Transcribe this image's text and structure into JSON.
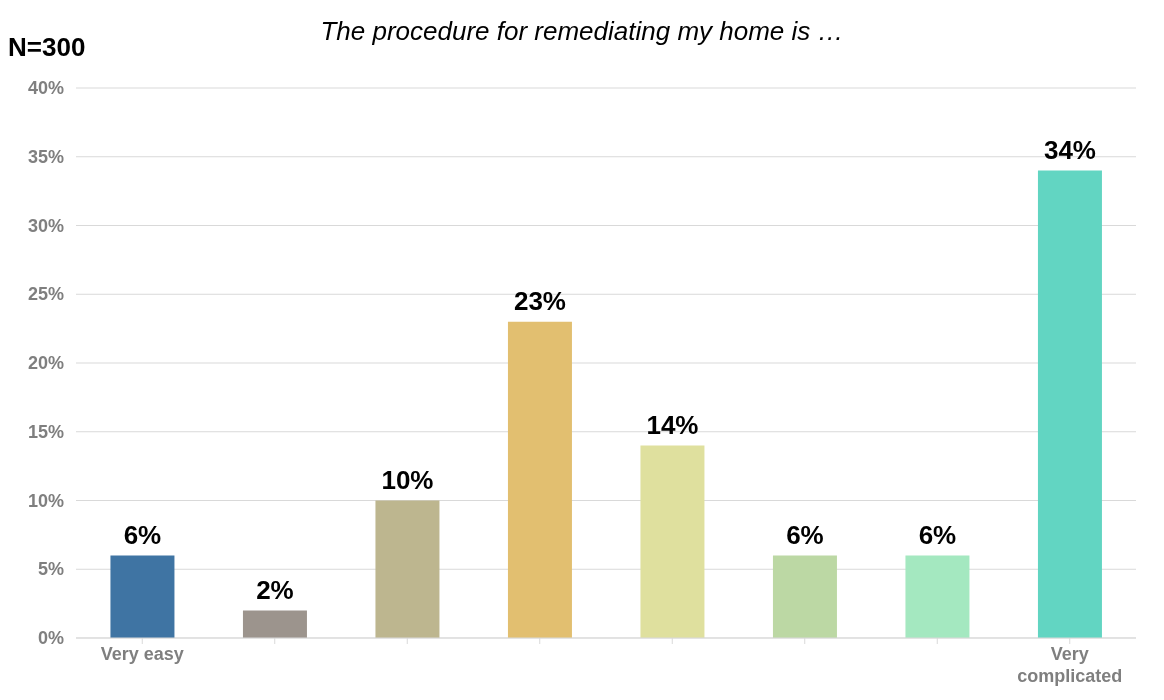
{
  "chart_data": {
    "type": "bar",
    "title": "The procedure for remediating my home is …",
    "annotations": [
      "N=300"
    ],
    "categories": [
      "Very easy",
      null,
      null,
      null,
      null,
      null,
      null,
      "Very complicated"
    ],
    "values": [
      6,
      2,
      10,
      23,
      14,
      6,
      6,
      34
    ],
    "value_labels": [
      "6%",
      "2%",
      "10%",
      "23%",
      "14%",
      "6%",
      "6%",
      "34%"
    ],
    "colors": [
      "#3f74a3",
      "#9c948d",
      "#bdb68f",
      "#e2bf70",
      "#dfe09e",
      "#bcd8a4",
      "#a4e8c0",
      "#62d5c2"
    ],
    "ylim": [
      0,
      40
    ],
    "yticks": [
      {
        "value": 0,
        "label": "0%"
      },
      {
        "value": 5,
        "label": "5%"
      },
      {
        "value": 10,
        "label": "10%"
      },
      {
        "value": 15,
        "label": "15%"
      },
      {
        "value": 20,
        "label": "20%"
      },
      {
        "value": 25,
        "label": "25%"
      },
      {
        "value": 30,
        "label": "30%"
      },
      {
        "value": 35,
        "label": "35%"
      },
      {
        "value": 40,
        "label": "40%"
      }
    ],
    "grid": "y",
    "legend": false
  }
}
